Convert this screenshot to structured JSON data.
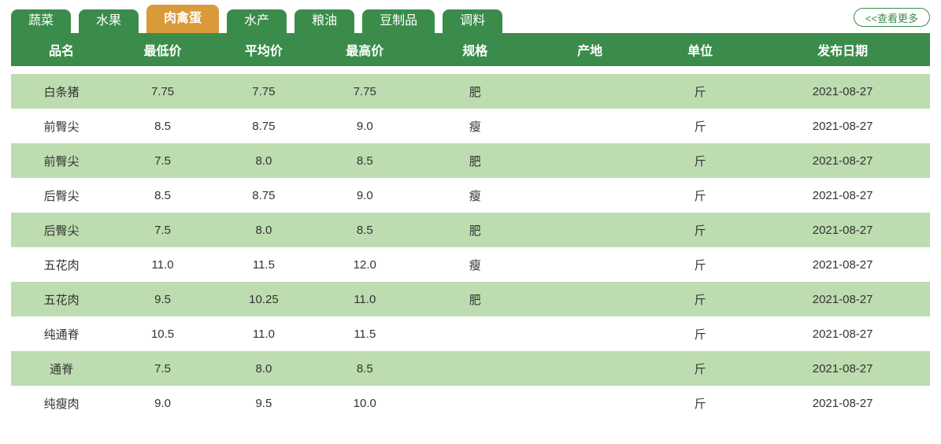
{
  "colors": {
    "tab_bg": "#3b8c4b",
    "tab_active_bg": "#d99a3a",
    "tab_text": "#ffffff",
    "header_bg": "#3b8c4b",
    "header_text": "#ffffff",
    "row_even_bg": "#ffffff",
    "row_odd_bg": "#bddcb0",
    "body_text": "#333333",
    "more_border": "#3b8c4b",
    "more_text": "#3b8c4b"
  },
  "tabs": [
    {
      "label": "蔬菜",
      "active": false
    },
    {
      "label": "水果",
      "active": false
    },
    {
      "label": "肉禽蛋",
      "active": true
    },
    {
      "label": "水产",
      "active": false
    },
    {
      "label": "粮油",
      "active": false
    },
    {
      "label": "豆制品",
      "active": false
    },
    {
      "label": "调料",
      "active": false
    }
  ],
  "more_label": "<<查看更多",
  "table": {
    "columns": [
      {
        "key": "name",
        "label": "品名",
        "class": "c-name"
      },
      {
        "key": "low",
        "label": "最低价",
        "class": "c-low"
      },
      {
        "key": "avg",
        "label": "平均价",
        "class": "c-avg"
      },
      {
        "key": "high",
        "label": "最高价",
        "class": "c-high"
      },
      {
        "key": "spec",
        "label": "规格",
        "class": "c-spec"
      },
      {
        "key": "origin",
        "label": "产地",
        "class": "c-origin"
      },
      {
        "key": "unit",
        "label": "单位",
        "class": "c-unit"
      },
      {
        "key": "date",
        "label": "发布日期",
        "class": "c-date"
      }
    ],
    "rows": [
      {
        "name": "白条猪",
        "low": "7.75",
        "avg": "7.75",
        "high": "7.75",
        "spec": "肥",
        "origin": "",
        "unit": "斤",
        "date": "2021-08-27"
      },
      {
        "name": "前臀尖",
        "low": "8.5",
        "avg": "8.75",
        "high": "9.0",
        "spec": "瘦",
        "origin": "",
        "unit": "斤",
        "date": "2021-08-27"
      },
      {
        "name": "前臀尖",
        "low": "7.5",
        "avg": "8.0",
        "high": "8.5",
        "spec": "肥",
        "origin": "",
        "unit": "斤",
        "date": "2021-08-27"
      },
      {
        "name": "后臀尖",
        "low": "8.5",
        "avg": "8.75",
        "high": "9.0",
        "spec": "瘦",
        "origin": "",
        "unit": "斤",
        "date": "2021-08-27"
      },
      {
        "name": "后臀尖",
        "low": "7.5",
        "avg": "8.0",
        "high": "8.5",
        "spec": "肥",
        "origin": "",
        "unit": "斤",
        "date": "2021-08-27"
      },
      {
        "name": "五花肉",
        "low": "11.0",
        "avg": "11.5",
        "high": "12.0",
        "spec": "瘦",
        "origin": "",
        "unit": "斤",
        "date": "2021-08-27"
      },
      {
        "name": "五花肉",
        "low": "9.5",
        "avg": "10.25",
        "high": "11.0",
        "spec": "肥",
        "origin": "",
        "unit": "斤",
        "date": "2021-08-27"
      },
      {
        "name": "纯通脊",
        "low": "10.5",
        "avg": "11.0",
        "high": "11.5",
        "spec": "",
        "origin": "",
        "unit": "斤",
        "date": "2021-08-27"
      },
      {
        "name": "通脊",
        "low": "7.5",
        "avg": "8.0",
        "high": "8.5",
        "spec": "",
        "origin": "",
        "unit": "斤",
        "date": "2021-08-27"
      },
      {
        "name": "纯瘦肉",
        "low": "9.0",
        "avg": "9.5",
        "high": "10.0",
        "spec": "",
        "origin": "",
        "unit": "斤",
        "date": "2021-08-27"
      }
    ]
  }
}
